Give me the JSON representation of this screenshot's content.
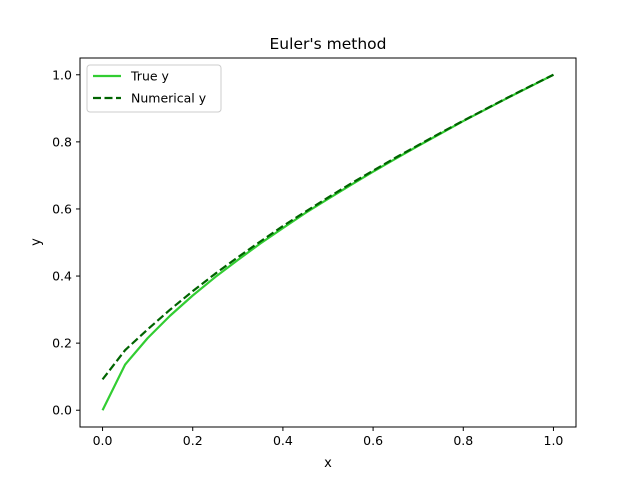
{
  "chart_data": {
    "type": "line",
    "title": "Euler's method",
    "xlabel": "x",
    "ylabel": "y",
    "xlim": [
      -0.05,
      1.05
    ],
    "ylim": [
      -0.05,
      1.05
    ],
    "xticks": [
      "0.0",
      "0.2",
      "0.4",
      "0.6",
      "0.8",
      "1.0"
    ],
    "yticks": [
      "0.0",
      "0.2",
      "0.4",
      "0.6",
      "0.8",
      "1.0"
    ],
    "grid": false,
    "legend_position": "upper-left",
    "series": [
      {
        "name": "True y",
        "style": "solid",
        "color": "#32cd32",
        "x": [
          0.0,
          0.05,
          0.1,
          0.15,
          0.2,
          0.25,
          0.3,
          0.35,
          0.4,
          0.45,
          0.5,
          0.55,
          0.6,
          0.65,
          0.7,
          0.75,
          0.8,
          0.85,
          0.9,
          0.95,
          1.0
        ],
        "y": [
          0.0,
          0.136,
          0.215,
          0.282,
          0.342,
          0.397,
          0.448,
          0.497,
          0.543,
          0.588,
          0.63,
          0.671,
          0.711,
          0.75,
          0.788,
          0.825,
          0.862,
          0.897,
          0.932,
          0.966,
          1.0
        ]
      },
      {
        "name": "Numerical y",
        "style": "dashed",
        "color": "#006400",
        "x": [
          0.0,
          0.05,
          0.1,
          0.15,
          0.2,
          0.25,
          0.3,
          0.35,
          0.4,
          0.45,
          0.5,
          0.55,
          0.6,
          0.65,
          0.7,
          0.75,
          0.8,
          0.85,
          0.9,
          0.95,
          1.0
        ],
        "y": [
          0.092,
          0.179,
          0.241,
          0.3,
          0.355,
          0.407,
          0.456,
          0.503,
          0.549,
          0.592,
          0.634,
          0.675,
          0.714,
          0.753,
          0.79,
          0.827,
          0.863,
          0.898,
          0.933,
          0.967,
          1.0
        ]
      }
    ]
  }
}
